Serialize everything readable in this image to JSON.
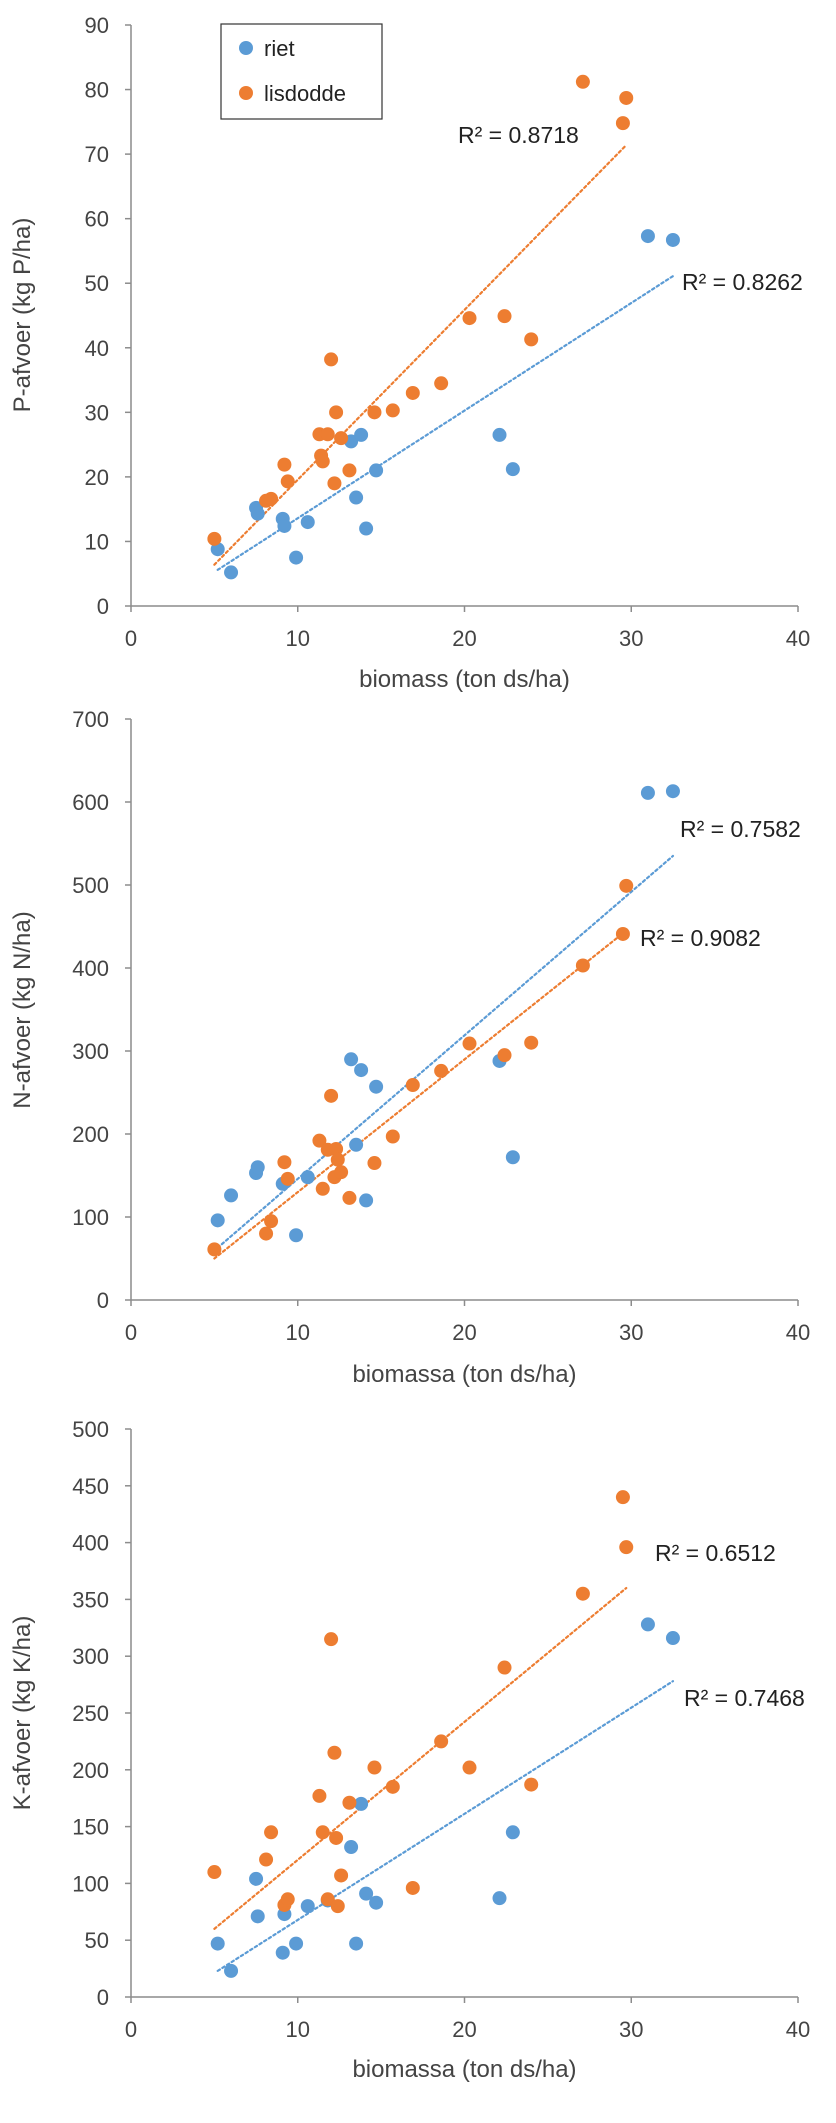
{
  "colors": {
    "riet": "#5b9bd5",
    "lisdodde": "#ed7d31",
    "axis": "#8c8c8c",
    "text": "#444444"
  },
  "legend": {
    "items": [
      "riet",
      "lisdodde"
    ],
    "placement": "top-left, first chart"
  },
  "chart_data": [
    {
      "type": "scatter",
      "title": "",
      "xlabel": "biomass (ton ds/ha)",
      "ylabel": "P-afvoer (kg P/ha)",
      "xlim": [
        0,
        40
      ],
      "ylim": [
        0,
        90
      ],
      "xticks": [
        0,
        10,
        20,
        30,
        40
      ],
      "yticks": [
        0,
        10,
        20,
        30,
        40,
        50,
        60,
        70,
        80,
        90
      ],
      "series": [
        {
          "name": "riet",
          "x": [
            5.2,
            6.0,
            7.5,
            7.6,
            9.1,
            9.2,
            9.9,
            10.6,
            13.2,
            13.5,
            13.8,
            14.1,
            14.7,
            22.1,
            22.9,
            31.0,
            32.5
          ],
          "y": [
            8.8,
            5.2,
            15.2,
            14.3,
            13.5,
            12.4,
            7.5,
            13.0,
            25.5,
            16.8,
            26.5,
            12.0,
            21.0,
            26.5,
            21.2,
            57.3,
            56.7
          ],
          "trend": {
            "x": [
              5.2,
              32.5
            ],
            "y": [
              5.6,
              51.1
            ],
            "r2_label": "R² = 0.8262"
          }
        },
        {
          "name": "lisdodde",
          "x": [
            5.0,
            8.1,
            8.4,
            9.2,
            9.4,
            11.3,
            11.4,
            11.5,
            11.8,
            12.0,
            12.2,
            12.3,
            12.6,
            13.1,
            14.6,
            15.7,
            16.9,
            18.6,
            20.3,
            22.4,
            24.0,
            27.1,
            29.5,
            29.7
          ],
          "y": [
            10.4,
            16.3,
            16.6,
            21.9,
            19.3,
            26.6,
            23.3,
            22.4,
            26.6,
            38.2,
            19.0,
            30.0,
            26.0,
            21.0,
            30.0,
            30.3,
            33.0,
            34.5,
            44.6,
            44.9,
            41.3,
            81.2,
            74.8,
            78.7
          ],
          "trend": {
            "x": [
              5.0,
              29.7
            ],
            "y": [
              6.4,
              71.4
            ],
            "r2_label": "R² = 0.8718"
          }
        }
      ]
    },
    {
      "type": "scatter",
      "title": "",
      "xlabel": "biomassa (ton ds/ha)",
      "ylabel": "N-afvoer (kg N/ha)",
      "xlim": [
        0,
        40
      ],
      "ylim": [
        0,
        700
      ],
      "xticks": [
        0,
        10,
        20,
        30,
        40
      ],
      "yticks": [
        0,
        100,
        200,
        300,
        400,
        500,
        600,
        700
      ],
      "series": [
        {
          "name": "riet",
          "x": [
            5.2,
            6.0,
            7.5,
            7.6,
            9.1,
            9.9,
            10.6,
            13.2,
            13.5,
            13.8,
            14.1,
            14.7,
            22.1,
            22.9,
            31.0,
            32.5
          ],
          "y": [
            96,
            126,
            153,
            160,
            140,
            78,
            148,
            290,
            187,
            277,
            120,
            257,
            288,
            172,
            611,
            613
          ],
          "trend": {
            "x": [
              5.2,
              32.5
            ],
            "y": [
              63,
              535
            ],
            "r2_label": "R² = 0.7582"
          }
        },
        {
          "name": "lisdodde",
          "x": [
            5.0,
            8.1,
            8.4,
            9.2,
            9.4,
            11.3,
            11.5,
            11.8,
            12.0,
            12.2,
            12.3,
            12.4,
            12.6,
            13.1,
            14.6,
            15.7,
            16.9,
            18.6,
            20.3,
            22.4,
            24.0,
            27.1,
            29.5,
            29.7
          ],
          "y": [
            61,
            80,
            95,
            166,
            146,
            192,
            134,
            181,
            246,
            148,
            182,
            169,
            154,
            123,
            165,
            197,
            259,
            276,
            309,
            295,
            310,
            403,
            441,
            499
          ],
          "trend": {
            "x": [
              5.0,
              29.7
            ],
            "y": [
              50,
              445
            ],
            "r2_label": "R² = 0.9082"
          }
        }
      ]
    },
    {
      "type": "scatter",
      "title": "",
      "xlabel": "biomassa (ton ds/ha)",
      "ylabel": "K-afvoer (kg K/ha)",
      "xlim": [
        0,
        40
      ],
      "ylim": [
        0,
        500
      ],
      "xticks": [
        0,
        10,
        20,
        30,
        40
      ],
      "yticks": [
        0,
        50,
        100,
        150,
        200,
        250,
        300,
        350,
        400,
        450,
        500
      ],
      "series": [
        {
          "name": "riet",
          "x": [
            5.2,
            6.0,
            7.5,
            7.6,
            9.1,
            9.2,
            9.9,
            10.6,
            11.8,
            13.2,
            13.5,
            13.8,
            14.1,
            14.7,
            22.1,
            22.9,
            31.0,
            32.5
          ],
          "y": [
            47,
            23,
            104,
            71,
            39,
            73,
            47,
            80,
            85,
            132,
            47,
            170,
            91,
            83,
            87,
            145,
            328,
            316
          ],
          "trend": {
            "x": [
              5.2,
              32.5
            ],
            "y": [
              23,
              278
            ],
            "r2_label": "R² = 0.7468"
          }
        },
        {
          "name": "lisdodde",
          "x": [
            5.0,
            8.1,
            8.4,
            9.2,
            9.4,
            11.3,
            11.5,
            11.8,
            12.0,
            12.2,
            12.3,
            12.4,
            12.6,
            13.1,
            14.6,
            15.7,
            16.9,
            18.6,
            20.3,
            22.4,
            24.0,
            27.1,
            29.5,
            29.7
          ],
          "y": [
            110,
            121,
            145,
            81,
            86,
            177,
            145,
            86,
            315,
            215,
            140,
            80,
            107,
            171,
            202,
            185,
            96,
            225,
            202,
            290,
            187,
            355,
            440,
            396
          ],
          "trend": {
            "x": [
              5.0,
              29.7
            ],
            "y": [
              60,
              360
            ],
            "r2_label": "R² = 0.6512"
          }
        }
      ]
    }
  ]
}
